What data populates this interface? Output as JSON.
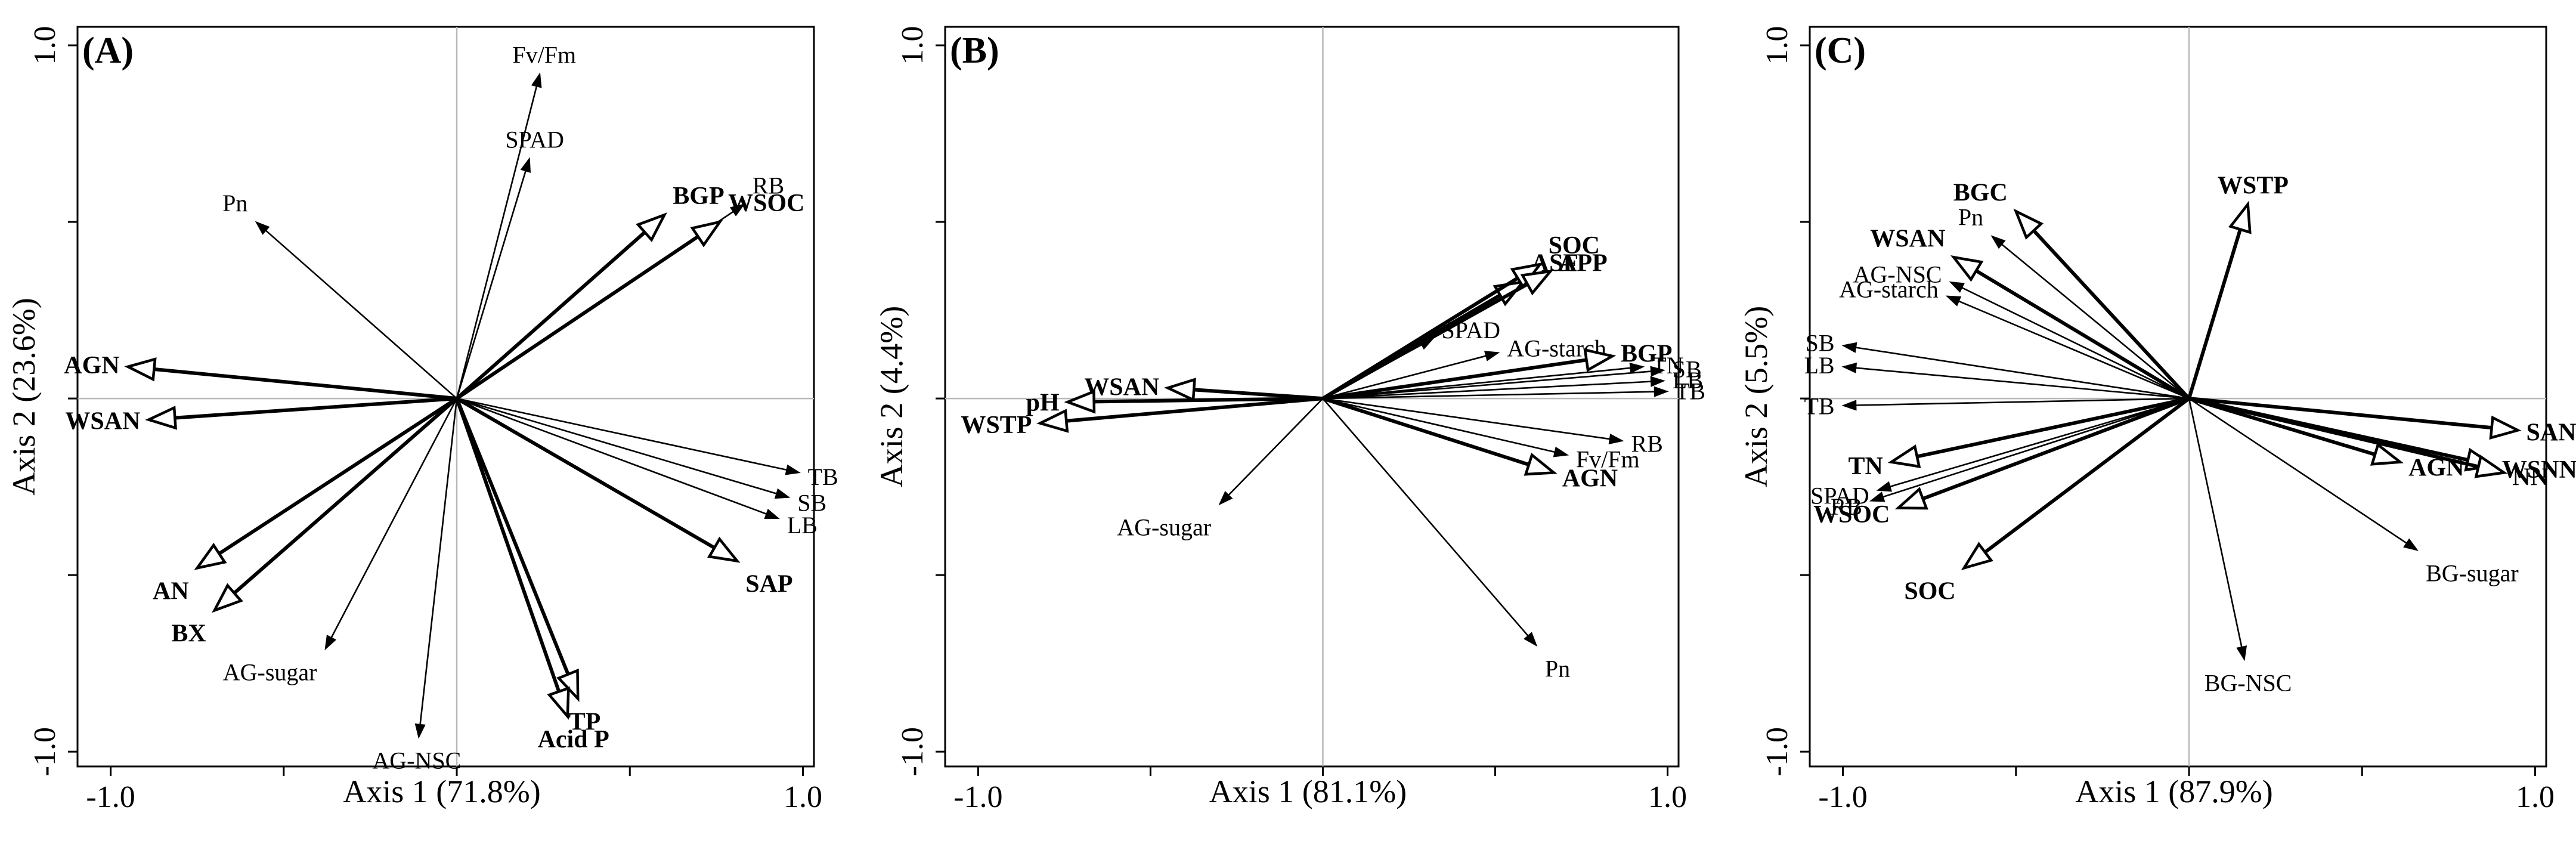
{
  "chart_data": [
    {
      "type": "biplot",
      "panel_label": "(A)",
      "xlabel": "Axis 1 (71.8%)",
      "ylabel": "Axis 2 (23.6%)",
      "xlim": [
        -1.0,
        1.0
      ],
      "ylim": [
        -1.0,
        1.0
      ],
      "x_tick_labels": [
        "-1.0",
        "1.0"
      ],
      "y_tick_labels": [
        "-1.0",
        "1.0"
      ],
      "vectors": [
        {
          "name": "Fv/Fm",
          "x": 0.24,
          "y": 0.92,
          "bold": false,
          "head": "solid"
        },
        {
          "name": "SPAD",
          "x": 0.21,
          "y": 0.68,
          "bold": false,
          "head": "solid"
        },
        {
          "name": "Pn",
          "x": -0.58,
          "y": 0.5,
          "bold": false,
          "head": "solid"
        },
        {
          "name": "BGP",
          "x": 0.6,
          "y": 0.52,
          "bold": true,
          "head": "open"
        },
        {
          "name": "RB",
          "x": 0.83,
          "y": 0.55,
          "bold": false,
          "head": "solid"
        },
        {
          "name": "WSOC",
          "x": 0.76,
          "y": 0.5,
          "bold": true,
          "head": "open"
        },
        {
          "name": "AGN",
          "x": -0.95,
          "y": 0.09,
          "bold": true,
          "head": "open"
        },
        {
          "name": "WSAN",
          "x": -0.89,
          "y": -0.06,
          "bold": true,
          "head": "open"
        },
        {
          "name": "TB",
          "x": 0.99,
          "y": -0.21,
          "bold": false,
          "head": "solid"
        },
        {
          "name": "SB",
          "x": 0.96,
          "y": -0.28,
          "bold": false,
          "head": "solid"
        },
        {
          "name": "LB",
          "x": 0.93,
          "y": -0.34,
          "bold": false,
          "head": "solid"
        },
        {
          "name": "SAP",
          "x": 0.81,
          "y": -0.46,
          "bold": true,
          "head": "open"
        },
        {
          "name": "AN",
          "x": -0.75,
          "y": -0.48,
          "bold": true,
          "head": "open"
        },
        {
          "name": "BX",
          "x": -0.7,
          "y": -0.6,
          "bold": true,
          "head": "open"
        },
        {
          "name": "AG-sugar",
          "x": -0.38,
          "y": -0.71,
          "bold": false,
          "head": "solid"
        },
        {
          "name": "AG-NSC",
          "x": -0.11,
          "y": -0.96,
          "bold": false,
          "head": "solid"
        },
        {
          "name": "TP",
          "x": 0.35,
          "y": -0.85,
          "bold": true,
          "head": "open"
        },
        {
          "name": "Acid P",
          "x": 0.32,
          "y": -0.9,
          "bold": true,
          "head": "open"
        }
      ]
    },
    {
      "type": "biplot",
      "panel_label": "(B)",
      "xlabel": "Axis 1 (81.1%)",
      "ylabel": "Axis 2 (4.4%)",
      "xlim": [
        -1.0,
        1.0
      ],
      "ylim": [
        -1.0,
        1.0
      ],
      "x_tick_labels": [
        "-1.0",
        "1.0"
      ],
      "y_tick_labels": [
        "-1.0",
        "1.0"
      ],
      "vectors": [
        {
          "name": "ASF",
          "x": 0.58,
          "y": 0.33,
          "bold": true,
          "head": "open"
        },
        {
          "name": "SOC",
          "x": 0.63,
          "y": 0.38,
          "bold": true,
          "head": "open"
        },
        {
          "name": "APP",
          "x": 0.66,
          "y": 0.36,
          "bold": true,
          "head": "open"
        },
        {
          "name": "SPAD",
          "x": 0.32,
          "y": 0.17,
          "bold": false,
          "head": "solid"
        },
        {
          "name": "AG-starch",
          "x": 0.51,
          "y": 0.13,
          "bold": false,
          "head": "solid"
        },
        {
          "name": "BGP",
          "x": 0.84,
          "y": 0.12,
          "bold": true,
          "head": "open"
        },
        {
          "name": "TN",
          "x": 0.93,
          "y": 0.09,
          "bold": false,
          "head": "solid"
        },
        {
          "name": "SB",
          "x": 0.99,
          "y": 0.08,
          "bold": false,
          "head": "solid"
        },
        {
          "name": "LB",
          "x": 0.99,
          "y": 0.05,
          "bold": false,
          "head": "solid"
        },
        {
          "name": "TB",
          "x": 1.0,
          "y": 0.02,
          "bold": false,
          "head": "solid"
        },
        {
          "name": "RB",
          "x": 0.87,
          "y": -0.12,
          "bold": false,
          "head": "solid"
        },
        {
          "name": "Fv/Fm",
          "x": 0.71,
          "y": -0.16,
          "bold": false,
          "head": "solid"
        },
        {
          "name": "AGN",
          "x": 0.67,
          "y": -0.21,
          "bold": true,
          "head": "open"
        },
        {
          "name": "Pn",
          "x": 0.62,
          "y": -0.7,
          "bold": false,
          "head": "solid"
        },
        {
          "name": "AG-sugar",
          "x": -0.3,
          "y": -0.3,
          "bold": false,
          "head": "solid"
        },
        {
          "name": "WSAN",
          "x": -0.45,
          "y": 0.03,
          "bold": true,
          "head": "open"
        },
        {
          "name": "pH",
          "x": -0.74,
          "y": -0.01,
          "bold": true,
          "head": "open"
        },
        {
          "name": "WSTP",
          "x": -0.82,
          "y": -0.07,
          "bold": true,
          "head": "open"
        }
      ]
    },
    {
      "type": "biplot",
      "panel_label": "(C)",
      "xlabel": "Axis 1 (87.9%)",
      "ylabel": "Axis 2 (5.5%)",
      "xlim": [
        -1.0,
        1.0
      ],
      "ylim": [
        -1.0,
        1.0
      ],
      "x_tick_labels": [
        "-1.0",
        "1.0"
      ],
      "y_tick_labels": [
        "-1.0",
        "1.0"
      ],
      "vectors": [
        {
          "name": "WSTP",
          "x": 0.17,
          "y": 0.55,
          "bold": true,
          "head": "open"
        },
        {
          "name": "BGC",
          "x": -0.5,
          "y": 0.53,
          "bold": true,
          "head": "open"
        },
        {
          "name": "Pn",
          "x": -0.57,
          "y": 0.46,
          "bold": false,
          "head": "solid"
        },
        {
          "name": "WSAN",
          "x": -0.68,
          "y": 0.4,
          "bold": true,
          "head": "open"
        },
        {
          "name": "AG-NSC",
          "x": -0.69,
          "y": 0.33,
          "bold": false,
          "head": "solid"
        },
        {
          "name": "AG-starch",
          "x": -0.7,
          "y": 0.29,
          "bold": false,
          "head": "solid"
        },
        {
          "name": "SB",
          "x": -1.0,
          "y": 0.15,
          "bold": false,
          "head": "solid"
        },
        {
          "name": "LB",
          "x": -1.0,
          "y": 0.09,
          "bold": false,
          "head": "solid"
        },
        {
          "name": "TB",
          "x": -1.0,
          "y": -0.02,
          "bold": false,
          "head": "solid"
        },
        {
          "name": "TN",
          "x": -0.86,
          "y": -0.18,
          "bold": true,
          "head": "open"
        },
        {
          "name": "SPAD",
          "x": -0.9,
          "y": -0.26,
          "bold": false,
          "head": "solid"
        },
        {
          "name": "RB",
          "x": -0.92,
          "y": -0.29,
          "bold": false,
          "head": "solid"
        },
        {
          "name": "WSOC",
          "x": -0.84,
          "y": -0.31,
          "bold": true,
          "head": "open"
        },
        {
          "name": "SOC",
          "x": -0.65,
          "y": -0.48,
          "bold": true,
          "head": "open"
        },
        {
          "name": "SAN",
          "x": 0.95,
          "y": -0.09,
          "bold": true,
          "head": "open"
        },
        {
          "name": "WSNN",
          "x": 0.88,
          "y": -0.19,
          "bold": true,
          "head": "open"
        },
        {
          "name": "NN",
          "x": 0.91,
          "y": -0.21,
          "bold": true,
          "head": "open"
        },
        {
          "name": "AGN",
          "x": 0.61,
          "y": -0.18,
          "bold": true,
          "head": "open"
        },
        {
          "name": "BG-sugar",
          "x": 0.66,
          "y": -0.43,
          "bold": false,
          "head": "solid"
        },
        {
          "name": "BG-NSC",
          "x": 0.16,
          "y": -0.74,
          "bold": false,
          "head": "solid"
        }
      ]
    }
  ]
}
